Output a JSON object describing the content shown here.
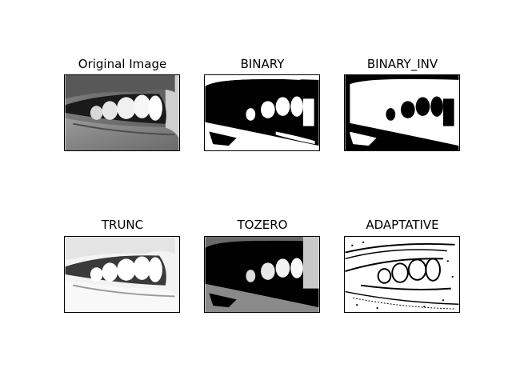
{
  "figure": {
    "panels": [
      {
        "title": "Original Image"
      },
      {
        "title": "BINARY"
      },
      {
        "title": "BINARY_INV"
      },
      {
        "title": "TRUNC"
      },
      {
        "title": "TOZERO"
      },
      {
        "title": "ADAPTATIVE"
      }
    ]
  }
}
